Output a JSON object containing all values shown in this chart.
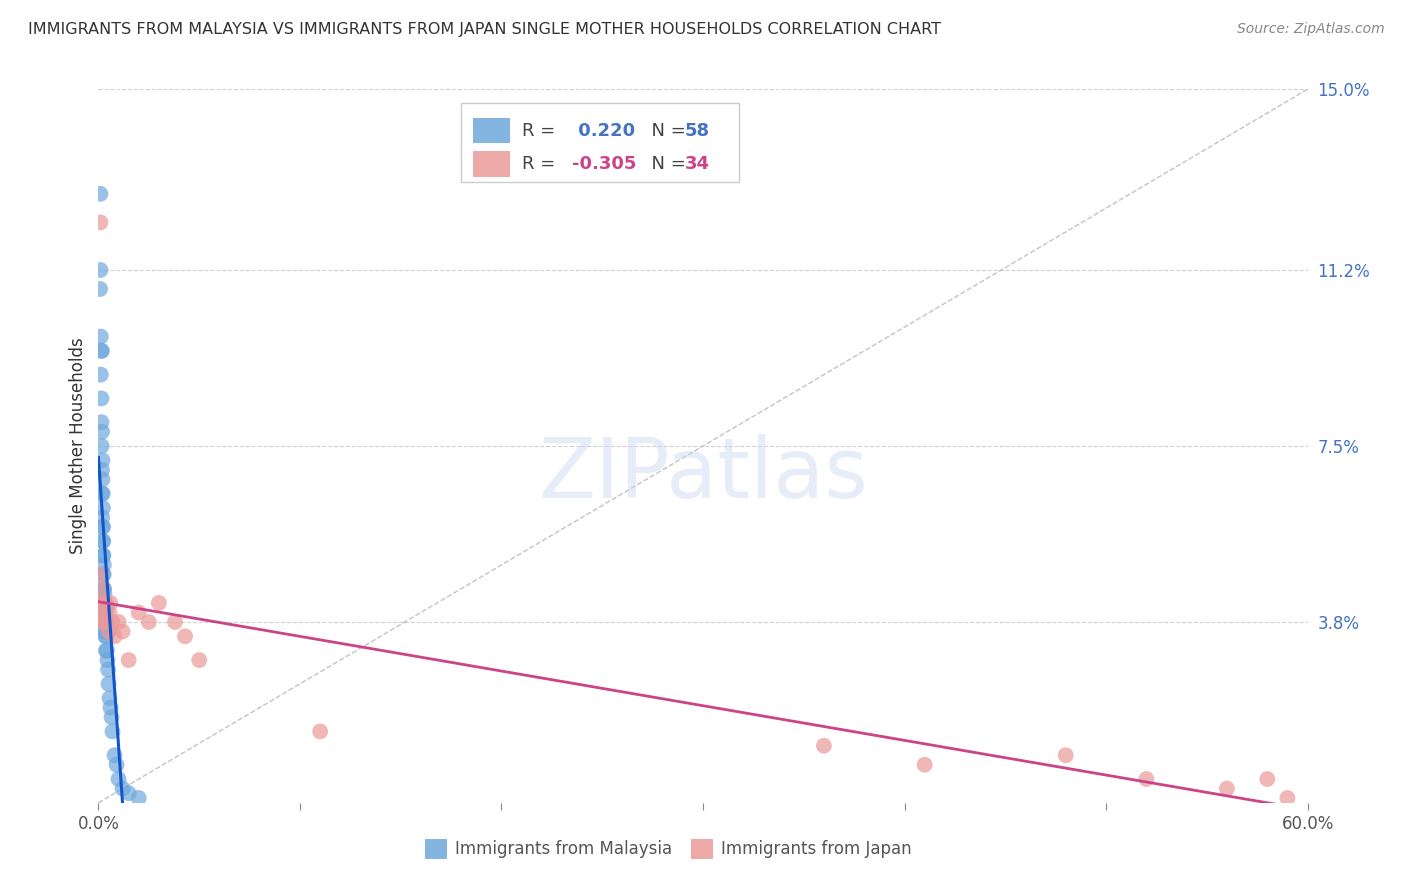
{
  "title": "IMMIGRANTS FROM MALAYSIA VS IMMIGRANTS FROM JAPAN SINGLE MOTHER HOUSEHOLDS CORRELATION CHART",
  "source": "Source: ZipAtlas.com",
  "ylabel": "Single Mother Households",
  "xlim": [
    0,
    0.6
  ],
  "ylim": [
    0,
    0.15
  ],
  "right_yticklabels": [
    "3.8%",
    "7.5%",
    "11.2%",
    "15.0%"
  ],
  "right_ytick_vals": [
    0.038,
    0.075,
    0.112,
    0.15
  ],
  "xtick_vals": [
    0.0,
    0.1,
    0.2,
    0.3,
    0.4,
    0.5,
    0.6
  ],
  "xticklabels": [
    "0.0%",
    "",
    "",
    "",
    "",
    "",
    "60.0%"
  ],
  "malaysia_color": "#6fa8dc",
  "japan_color": "#ea9999",
  "malaysia_line_color": "#1155cc",
  "japan_line_color": "#cc4488",
  "malaysia_R": 0.22,
  "malaysia_N": 58,
  "japan_R": -0.305,
  "japan_N": 34,
  "watermark": "ZIPatlas",
  "background_color": "#ffffff",
  "grid_color": "#cccccc",
  "title_color": "#333333",
  "right_axis_color": "#4472c4",
  "malaysia_x": [
    0.0008,
    0.001,
    0.001,
    0.0012,
    0.0012,
    0.0014,
    0.0015,
    0.0015,
    0.0016,
    0.0017,
    0.0018,
    0.0018,
    0.0019,
    0.0019,
    0.002,
    0.002,
    0.002,
    0.0021,
    0.0021,
    0.0022,
    0.0022,
    0.0023,
    0.0023,
    0.0024,
    0.0024,
    0.0025,
    0.0025,
    0.0026,
    0.0027,
    0.0027,
    0.0028,
    0.0028,
    0.0029,
    0.003,
    0.003,
    0.0031,
    0.0032,
    0.0033,
    0.0034,
    0.0035,
    0.0036,
    0.0037,
    0.0038,
    0.004,
    0.0042,
    0.0045,
    0.0048,
    0.005,
    0.0055,
    0.006,
    0.0065,
    0.007,
    0.008,
    0.009,
    0.01,
    0.012,
    0.015,
    0.02
  ],
  "malaysia_y": [
    0.108,
    0.128,
    0.112,
    0.098,
    0.09,
    0.095,
    0.085,
    0.08,
    0.075,
    0.095,
    0.078,
    0.07,
    0.065,
    0.06,
    0.072,
    0.068,
    0.058,
    0.065,
    0.055,
    0.062,
    0.052,
    0.058,
    0.048,
    0.055,
    0.045,
    0.052,
    0.042,
    0.048,
    0.05,
    0.04,
    0.045,
    0.038,
    0.042,
    0.044,
    0.036,
    0.04,
    0.042,
    0.038,
    0.035,
    0.04,
    0.036,
    0.032,
    0.038,
    0.035,
    0.032,
    0.03,
    0.028,
    0.025,
    0.022,
    0.02,
    0.018,
    0.015,
    0.01,
    0.008,
    0.005,
    0.003,
    0.002,
    0.001
  ],
  "japan_x": [
    0.001,
    0.0012,
    0.0015,
    0.0018,
    0.002,
    0.0022,
    0.0025,
    0.0028,
    0.003,
    0.0035,
    0.004,
    0.0045,
    0.005,
    0.0055,
    0.006,
    0.007,
    0.008,
    0.01,
    0.012,
    0.015,
    0.02,
    0.025,
    0.03,
    0.038,
    0.043,
    0.05,
    0.11,
    0.36,
    0.41,
    0.48,
    0.52,
    0.56,
    0.58,
    0.59
  ],
  "japan_y": [
    0.122,
    0.048,
    0.042,
    0.045,
    0.04,
    0.038,
    0.042,
    0.038,
    0.04,
    0.04,
    0.042,
    0.038,
    0.036,
    0.04,
    0.042,
    0.038,
    0.035,
    0.038,
    0.036,
    0.03,
    0.04,
    0.038,
    0.042,
    0.038,
    0.035,
    0.03,
    0.015,
    0.012,
    0.008,
    0.01,
    0.005,
    0.003,
    0.005,
    0.001
  ]
}
